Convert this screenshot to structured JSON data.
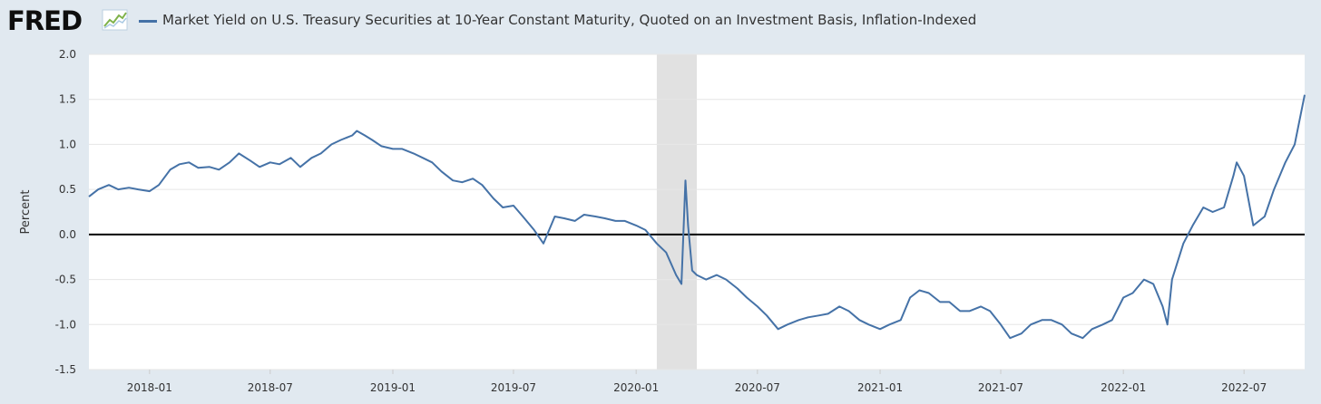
{
  "header": {
    "logo_text": "FRED",
    "series_title": "Market Yield on U.S. Treasury Securities at 10-Year Constant Maturity, Quoted on an Investment Basis, Inflation-Indexed"
  },
  "colors": {
    "background": "#e1e9f0",
    "plot_background": "#ffffff",
    "series": "#4572a7",
    "recession": "#e1e1e1",
    "zero_line": "#000000",
    "grid": "#e6e6e6"
  },
  "icons": {
    "logo_graph": "line-graph-icon"
  },
  "chart_data": {
    "type": "line",
    "title": "Market Yield on U.S. Treasury Securities at 10-Year Constant Maturity, Quoted on an Investment Basis, Inflation-Indexed",
    "xlabel": "",
    "ylabel": "Percent",
    "ylim": [
      -1.5,
      2.0
    ],
    "xlim": [
      "2017-10-02",
      "2022-09-30"
    ],
    "yticks": [
      "2.0",
      "1.5",
      "1.0",
      "0.5",
      "0.0",
      "-0.5",
      "-1.0",
      "-1.5"
    ],
    "ytick_values": [
      2.0,
      1.5,
      1.0,
      0.5,
      0.0,
      -0.5,
      -1.0,
      -1.5
    ],
    "xticks": [
      "2018-01",
      "2018-07",
      "2019-01",
      "2019-07",
      "2020-01",
      "2020-07",
      "2021-01",
      "2021-07",
      "2022-01",
      "2022-07"
    ],
    "xtick_dates": [
      "2018-01-01",
      "2018-07-01",
      "2019-01-01",
      "2019-07-01",
      "2020-01-01",
      "2020-07-01",
      "2021-01-01",
      "2021-07-01",
      "2022-01-01",
      "2022-07-01"
    ],
    "grid": true,
    "zero_line": true,
    "recession_shading": [
      {
        "start": "2020-02-01",
        "end": "2020-04-01"
      }
    ],
    "series": [
      {
        "name": "Market Yield on U.S. Treasury Securities at 10-Year Constant Maturity, Quoted on an Investment Basis, Inflation-Indexed",
        "x": [
          "2017-10-02",
          "2017-10-16",
          "2017-11-01",
          "2017-11-15",
          "2017-12-01",
          "2017-12-15",
          "2018-01-01",
          "2018-01-15",
          "2018-02-01",
          "2018-02-15",
          "2018-03-01",
          "2018-03-15",
          "2018-04-01",
          "2018-04-15",
          "2018-05-01",
          "2018-05-15",
          "2018-06-01",
          "2018-06-15",
          "2018-07-01",
          "2018-07-15",
          "2018-08-01",
          "2018-08-15",
          "2018-09-01",
          "2018-09-15",
          "2018-10-01",
          "2018-10-15",
          "2018-11-01",
          "2018-11-08",
          "2018-11-20",
          "2018-12-01",
          "2018-12-15",
          "2019-01-01",
          "2019-01-15",
          "2019-02-01",
          "2019-02-15",
          "2019-03-01",
          "2019-03-15",
          "2019-04-01",
          "2019-04-15",
          "2019-05-01",
          "2019-05-15",
          "2019-06-01",
          "2019-06-15",
          "2019-07-01",
          "2019-07-15",
          "2019-08-01",
          "2019-08-15",
          "2019-09-01",
          "2019-09-15",
          "2019-10-01",
          "2019-10-15",
          "2019-11-01",
          "2019-11-15",
          "2019-12-01",
          "2019-12-15",
          "2020-01-01",
          "2020-01-15",
          "2020-02-01",
          "2020-02-15",
          "2020-03-01",
          "2020-03-09",
          "2020-03-15",
          "2020-03-19",
          "2020-03-25",
          "2020-04-01",
          "2020-04-15",
          "2020-05-01",
          "2020-05-15",
          "2020-06-01",
          "2020-06-15",
          "2020-07-01",
          "2020-07-15",
          "2020-08-01",
          "2020-08-15",
          "2020-09-01",
          "2020-09-15",
          "2020-10-01",
          "2020-10-15",
          "2020-11-01",
          "2020-11-15",
          "2020-12-01",
          "2020-12-15",
          "2021-01-01",
          "2021-01-15",
          "2021-02-01",
          "2021-02-15",
          "2021-03-01",
          "2021-03-15",
          "2021-04-01",
          "2021-04-15",
          "2021-05-01",
          "2021-05-15",
          "2021-06-01",
          "2021-06-15",
          "2021-07-01",
          "2021-07-15",
          "2021-08-01",
          "2021-08-15",
          "2021-09-01",
          "2021-09-15",
          "2021-10-01",
          "2021-10-15",
          "2021-11-01",
          "2021-11-15",
          "2021-12-01",
          "2021-12-15",
          "2022-01-01",
          "2022-01-15",
          "2022-02-01",
          "2022-02-15",
          "2022-03-01",
          "2022-03-08",
          "2022-03-15",
          "2022-04-01",
          "2022-04-15",
          "2022-05-01",
          "2022-05-15",
          "2022-06-01",
          "2022-06-15",
          "2022-06-20",
          "2022-07-01",
          "2022-07-15",
          "2022-08-01",
          "2022-08-15",
          "2022-09-01",
          "2022-09-15",
          "2022-09-30"
        ],
        "y": [
          0.42,
          0.5,
          0.55,
          0.5,
          0.52,
          0.5,
          0.48,
          0.55,
          0.72,
          0.78,
          0.8,
          0.74,
          0.75,
          0.72,
          0.8,
          0.9,
          0.82,
          0.75,
          0.8,
          0.78,
          0.85,
          0.75,
          0.85,
          0.9,
          1.0,
          1.05,
          1.1,
          1.15,
          1.1,
          1.05,
          0.98,
          0.95,
          0.95,
          0.9,
          0.85,
          0.8,
          0.7,
          0.6,
          0.58,
          0.62,
          0.55,
          0.4,
          0.3,
          0.32,
          0.2,
          0.05,
          -0.1,
          0.2,
          0.18,
          0.15,
          0.22,
          0.2,
          0.18,
          0.15,
          0.15,
          0.1,
          0.05,
          -0.1,
          -0.2,
          -0.45,
          -0.55,
          0.6,
          0.1,
          -0.4,
          -0.45,
          -0.5,
          -0.45,
          -0.5,
          -0.6,
          -0.7,
          -0.8,
          -0.9,
          -1.05,
          -1.0,
          -0.95,
          -0.92,
          -0.9,
          -0.88,
          -0.8,
          -0.85,
          -0.95,
          -1.0,
          -1.05,
          -1.0,
          -0.95,
          -0.7,
          -0.62,
          -0.65,
          -0.75,
          -0.75,
          -0.85,
          -0.85,
          -0.8,
          -0.85,
          -1.0,
          -1.15,
          -1.1,
          -1.0,
          -0.95,
          -0.95,
          -1.0,
          -1.1,
          -1.15,
          -1.05,
          -1.0,
          -0.95,
          -0.7,
          -0.65,
          -0.5,
          -0.55,
          -0.8,
          -1.0,
          -0.5,
          -0.1,
          0.1,
          0.3,
          0.25,
          0.3,
          0.65,
          0.8,
          0.65,
          0.1,
          0.2,
          0.5,
          0.8,
          1.0,
          1.55
        ]
      }
    ]
  }
}
